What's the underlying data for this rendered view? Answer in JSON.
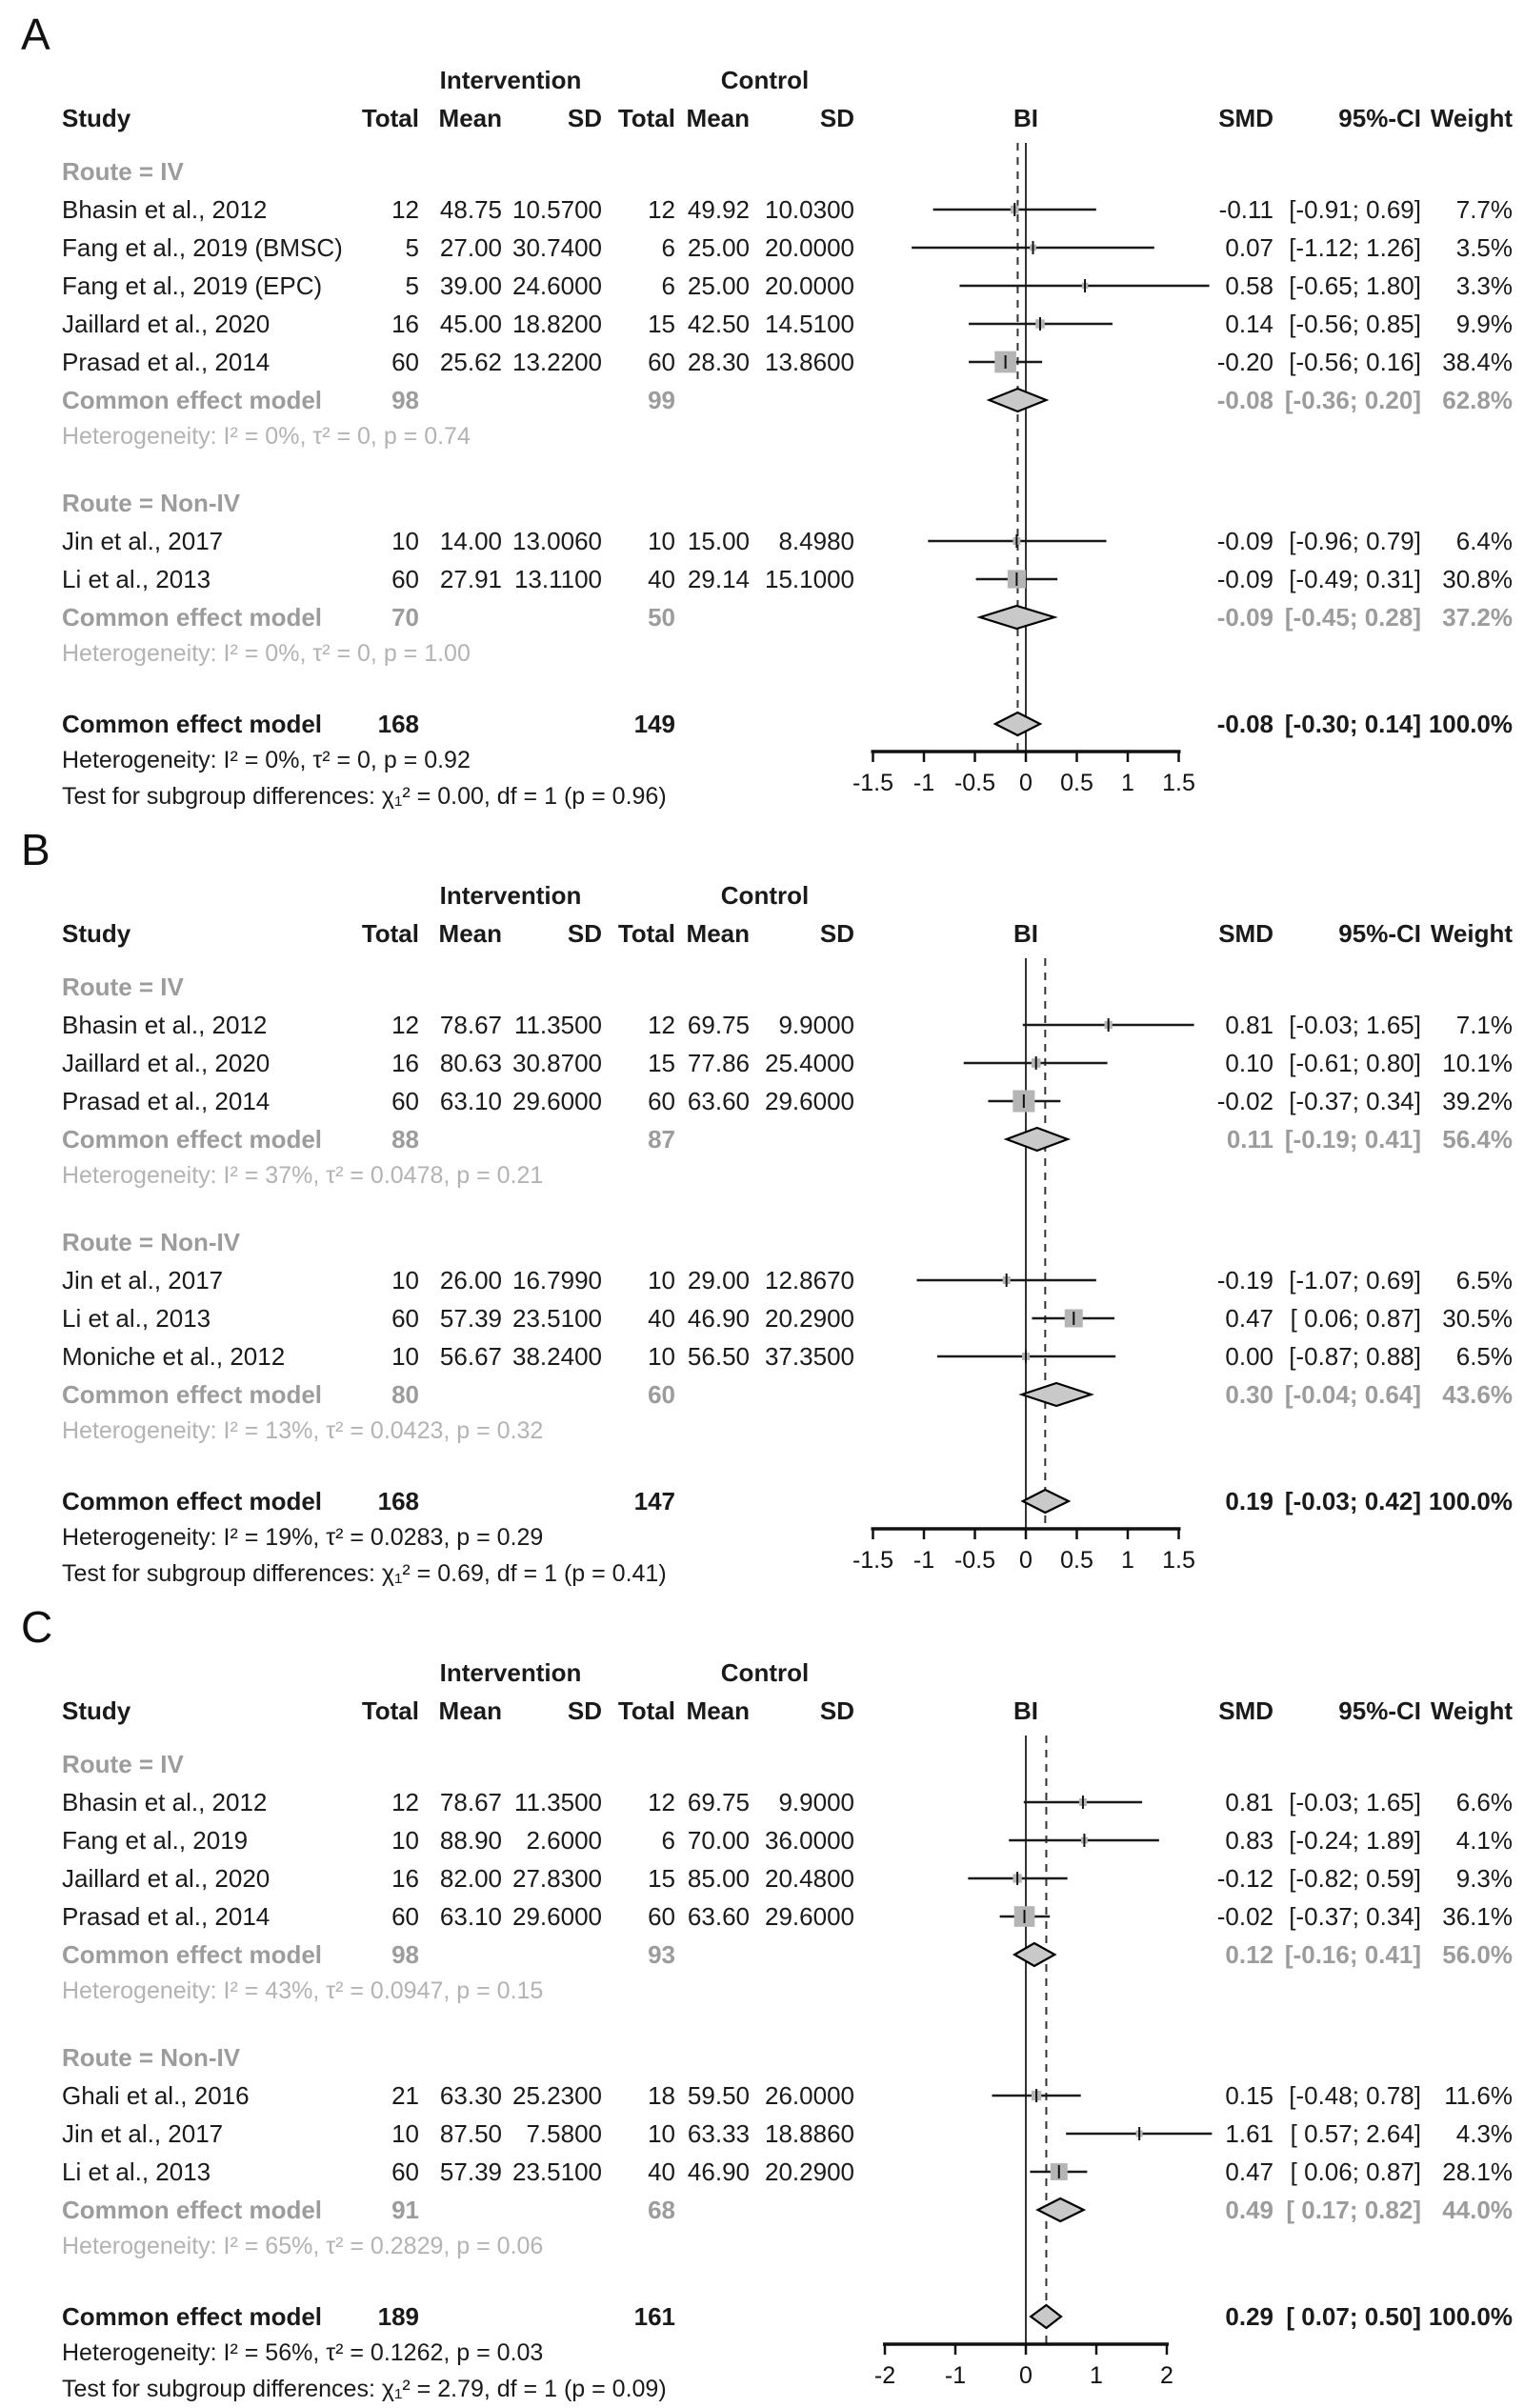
{
  "figure": {
    "outcome_measure": "BI",
    "effect_model_label": "Common effect model"
  },
  "chart_data": [
    {
      "type": "forest",
      "panel": "A",
      "columns": {
        "study": "Study",
        "group1": "Intervention",
        "group2": "Control",
        "total": "Total",
        "mean": "Mean",
        "sd": "SD",
        "outcome": "BI",
        "smd": "SMD",
        "ci": "95%-CI",
        "weight": "Weight"
      },
      "axis": {
        "ticks": [
          -1.5,
          -1,
          -0.5,
          0,
          0.5,
          1,
          1.5
        ],
        "tick_labels": [
          "-1.5",
          "-1",
          "-0.5",
          "0",
          "0.5",
          "1",
          "1.5"
        ]
      },
      "subgroups": [
        {
          "title": "Route = IV",
          "studies": [
            {
              "study": "Bhasin et al., 2012",
              "i_total": "12",
              "i_mean": "48.75",
              "i_sd": "10.5700",
              "c_total": "12",
              "c_mean": "49.92",
              "c_sd": "10.0300",
              "smd": -0.11,
              "lo": -0.91,
              "hi": 0.69,
              "smd_text": "-0.11",
              "ci_text": "[-0.91; 0.69]",
              "weight": 7.7,
              "weight_text": "7.7%"
            },
            {
              "study": "Fang et al., 2019 (BMSC)",
              "i_total": "5",
              "i_mean": "27.00",
              "i_sd": "30.7400",
              "c_total": "6",
              "c_mean": "25.00",
              "c_sd": "20.0000",
              "smd": 0.07,
              "lo": -1.12,
              "hi": 1.26,
              "smd_text": "0.07",
              "ci_text": "[-1.12; 1.26]",
              "weight": 3.5,
              "weight_text": "3.5%"
            },
            {
              "study": "Fang et al., 2019 (EPC)",
              "i_total": "5",
              "i_mean": "39.00",
              "i_sd": "24.6000",
              "c_total": "6",
              "c_mean": "25.00",
              "c_sd": "20.0000",
              "smd": 0.58,
              "lo": -0.65,
              "hi": 1.8,
              "smd_text": "0.58",
              "ci_text": "[-0.65; 1.80]",
              "weight": 3.3,
              "weight_text": "3.3%"
            },
            {
              "study": "Jaillard et al., 2020",
              "i_total": "16",
              "i_mean": "45.00",
              "i_sd": "18.8200",
              "c_total": "15",
              "c_mean": "42.50",
              "c_sd": "14.5100",
              "smd": 0.14,
              "lo": -0.56,
              "hi": 0.85,
              "smd_text": "0.14",
              "ci_text": "[-0.56; 0.85]",
              "weight": 9.9,
              "weight_text": "9.9%"
            },
            {
              "study": "Prasad et al., 2014",
              "i_total": "60",
              "i_mean": "25.62",
              "i_sd": "13.2200",
              "c_total": "60",
              "c_mean": "28.30",
              "c_sd": "13.8600",
              "smd": -0.2,
              "lo": -0.56,
              "hi": 0.16,
              "smd_text": "-0.20",
              "ci_text": "[-0.56; 0.16]",
              "weight": 38.4,
              "weight_text": "38.4%"
            }
          ],
          "pooled": {
            "label": "Common effect model",
            "i_total": "98",
            "c_total": "99",
            "smd": -0.08,
            "lo": -0.36,
            "hi": 0.2,
            "smd_text": "-0.08",
            "ci_text": "[-0.36; 0.20]",
            "weight_text": "62.8%"
          },
          "heterogeneity": "Heterogeneity: I² = 0%, τ² = 0, p = 0.74"
        },
        {
          "title": "Route = Non-IV",
          "studies": [
            {
              "study": "Jin et al., 2017",
              "i_total": "10",
              "i_mean": "14.00",
              "i_sd": "13.0060",
              "c_total": "10",
              "c_mean": "15.00",
              "c_sd": "8.4980",
              "smd": -0.09,
              "lo": -0.96,
              "hi": 0.79,
              "smd_text": "-0.09",
              "ci_text": "[-0.96; 0.79]",
              "weight": 6.4,
              "weight_text": "6.4%"
            },
            {
              "study": "Li et al., 2013",
              "i_total": "60",
              "i_mean": "27.91",
              "i_sd": "13.1100",
              "c_total": "40",
              "c_mean": "29.14",
              "c_sd": "15.1000",
              "smd": -0.09,
              "lo": -0.49,
              "hi": 0.31,
              "smd_text": "-0.09",
              "ci_text": "[-0.49; 0.31]",
              "weight": 30.8,
              "weight_text": "30.8%"
            }
          ],
          "pooled": {
            "label": "Common effect model",
            "i_total": "70",
            "c_total": "50",
            "smd": -0.09,
            "lo": -0.45,
            "hi": 0.28,
            "smd_text": "-0.09",
            "ci_text": "[-0.45; 0.28]",
            "weight_text": "37.2%"
          },
          "heterogeneity": "Heterogeneity: I² = 0%, τ² = 0, p = 1.00"
        }
      ],
      "overall": {
        "label": "Common effect model",
        "i_total": "168",
        "c_total": "149",
        "smd": -0.08,
        "lo": -0.3,
        "hi": 0.14,
        "smd_text": "-0.08",
        "ci_text": "[-0.30; 0.14]",
        "weight_text": "100.0%"
      },
      "heterogeneity": "Heterogeneity: I² = 0%, τ² = 0, p = 0.92",
      "subgroup_test": "Test for subgroup differences: χ₁² = 0.00, df = 1 (p = 0.96)"
    },
    {
      "type": "forest",
      "panel": "B",
      "columns": {
        "study": "Study",
        "group1": "Intervention",
        "group2": "Control",
        "total": "Total",
        "mean": "Mean",
        "sd": "SD",
        "outcome": "BI",
        "smd": "SMD",
        "ci": "95%-CI",
        "weight": "Weight"
      },
      "axis": {
        "ticks": [
          -1.5,
          -1,
          -0.5,
          0,
          0.5,
          1,
          1.5
        ],
        "tick_labels": [
          "-1.5",
          "-1",
          "-0.5",
          "0",
          "0.5",
          "1",
          "1.5"
        ]
      },
      "subgroups": [
        {
          "title": "Route = IV",
          "studies": [
            {
              "study": "Bhasin et al., 2012",
              "i_total": "12",
              "i_mean": "78.67",
              "i_sd": "11.3500",
              "c_total": "12",
              "c_mean": "69.75",
              "c_sd": "9.9000",
              "smd": 0.81,
              "lo": -0.03,
              "hi": 1.65,
              "smd_text": "0.81",
              "ci_text": "[-0.03; 1.65]",
              "weight": 7.1,
              "weight_text": "7.1%"
            },
            {
              "study": "Jaillard et al., 2020",
              "i_total": "16",
              "i_mean": "80.63",
              "i_sd": "30.8700",
              "c_total": "15",
              "c_mean": "77.86",
              "c_sd": "25.4000",
              "smd": 0.1,
              "lo": -0.61,
              "hi": 0.8,
              "smd_text": "0.10",
              "ci_text": "[-0.61; 0.80]",
              "weight": 10.1,
              "weight_text": "10.1%"
            },
            {
              "study": "Prasad et al., 2014",
              "i_total": "60",
              "i_mean": "63.10",
              "i_sd": "29.6000",
              "c_total": "60",
              "c_mean": "63.60",
              "c_sd": "29.6000",
              "smd": -0.02,
              "lo": -0.37,
              "hi": 0.34,
              "smd_text": "-0.02",
              "ci_text": "[-0.37; 0.34]",
              "weight": 39.2,
              "weight_text": "39.2%"
            }
          ],
          "pooled": {
            "label": "Common effect model",
            "i_total": "88",
            "c_total": "87",
            "smd": 0.11,
            "lo": -0.19,
            "hi": 0.41,
            "smd_text": "0.11",
            "ci_text": "[-0.19; 0.41]",
            "weight_text": "56.4%"
          },
          "heterogeneity": "Heterogeneity: I² = 37%, τ² = 0.0478, p = 0.21"
        },
        {
          "title": "Route = Non-IV",
          "studies": [
            {
              "study": "Jin et al., 2017",
              "i_total": "10",
              "i_mean": "26.00",
              "i_sd": "16.7990",
              "c_total": "10",
              "c_mean": "29.00",
              "c_sd": "12.8670",
              "smd": -0.19,
              "lo": -1.07,
              "hi": 0.69,
              "smd_text": "-0.19",
              "ci_text": "[-1.07; 0.69]",
              "weight": 6.5,
              "weight_text": "6.5%"
            },
            {
              "study": "Li et al., 2013",
              "i_total": "60",
              "i_mean": "57.39",
              "i_sd": "23.5100",
              "c_total": "40",
              "c_mean": "46.90",
              "c_sd": "20.2900",
              "smd": 0.47,
              "lo": 0.06,
              "hi": 0.87,
              "smd_text": "0.47",
              "ci_text": "[ 0.06; 0.87]",
              "weight": 30.5,
              "weight_text": "30.5%"
            },
            {
              "study": "Moniche et al., 2012",
              "i_total": "10",
              "i_mean": "56.67",
              "i_sd": "38.2400",
              "c_total": "10",
              "c_mean": "56.50",
              "c_sd": "37.3500",
              "smd": 0.0,
              "lo": -0.87,
              "hi": 0.88,
              "smd_text": "0.00",
              "ci_text": "[-0.87; 0.88]",
              "weight": 6.5,
              "weight_text": "6.5%"
            }
          ],
          "pooled": {
            "label": "Common effect model",
            "i_total": "80",
            "c_total": "60",
            "smd": 0.3,
            "lo": -0.04,
            "hi": 0.64,
            "smd_text": "0.30",
            "ci_text": "[-0.04; 0.64]",
            "weight_text": "43.6%"
          },
          "heterogeneity": "Heterogeneity: I² = 13%, τ² = 0.0423, p = 0.32"
        }
      ],
      "overall": {
        "label": "Common effect model",
        "i_total": "168",
        "c_total": "147",
        "smd": 0.19,
        "lo": -0.03,
        "hi": 0.42,
        "smd_text": "0.19",
        "ci_text": "[-0.03; 0.42]",
        "weight_text": "100.0%"
      },
      "heterogeneity": "Heterogeneity: I² = 19%, τ² = 0.0283, p = 0.29",
      "subgroup_test": "Test for subgroup differences: χ₁² = 0.69, df = 1 (p = 0.41)"
    },
    {
      "type": "forest",
      "panel": "C",
      "columns": {
        "study": "Study",
        "group1": "Intervention",
        "group2": "Control",
        "total": "Total",
        "mean": "Mean",
        "sd": "SD",
        "outcome": "BI",
        "smd": "SMD",
        "ci": "95%-CI",
        "weight": "Weight"
      },
      "axis": {
        "ticks": [
          -2,
          -1,
          0,
          1,
          2
        ],
        "tick_labels": [
          "-2",
          "-1",
          "0",
          "1",
          "2"
        ]
      },
      "subgroups": [
        {
          "title": "Route = IV",
          "studies": [
            {
              "study": "Bhasin et al., 2012",
              "i_total": "12",
              "i_mean": "78.67",
              "i_sd": "11.3500",
              "c_total": "12",
              "c_mean": "69.75",
              "c_sd": "9.9000",
              "smd": 0.81,
              "lo": -0.03,
              "hi": 1.65,
              "smd_text": "0.81",
              "ci_text": "[-0.03; 1.65]",
              "weight": 6.6,
              "weight_text": "6.6%"
            },
            {
              "study": "Fang et al., 2019",
              "i_total": "10",
              "i_mean": "88.90",
              "i_sd": "2.6000",
              "c_total": "6",
              "c_mean": "70.00",
              "c_sd": "36.0000",
              "smd": 0.83,
              "lo": -0.24,
              "hi": 1.89,
              "smd_text": "0.83",
              "ci_text": "[-0.24; 1.89]",
              "weight": 4.1,
              "weight_text": "4.1%"
            },
            {
              "study": "Jaillard et al., 2020",
              "i_total": "16",
              "i_mean": "82.00",
              "i_sd": "27.8300",
              "c_total": "15",
              "c_mean": "85.00",
              "c_sd": "20.4800",
              "smd": -0.12,
              "lo": -0.82,
              "hi": 0.59,
              "smd_text": "-0.12",
              "ci_text": "[-0.82; 0.59]",
              "weight": 9.3,
              "weight_text": "9.3%"
            },
            {
              "study": "Prasad et al., 2014",
              "i_total": "60",
              "i_mean": "63.10",
              "i_sd": "29.6000",
              "c_total": "60",
              "c_mean": "63.60",
              "c_sd": "29.6000",
              "smd": -0.02,
              "lo": -0.37,
              "hi": 0.34,
              "smd_text": "-0.02",
              "ci_text": "[-0.37; 0.34]",
              "weight": 36.1,
              "weight_text": "36.1%"
            }
          ],
          "pooled": {
            "label": "Common effect model",
            "i_total": "98",
            "c_total": "93",
            "smd": 0.12,
            "lo": -0.16,
            "hi": 0.41,
            "smd_text": "0.12",
            "ci_text": "[-0.16; 0.41]",
            "weight_text": "56.0%"
          },
          "heterogeneity": "Heterogeneity: I² = 43%, τ² = 0.0947, p = 0.15"
        },
        {
          "title": "Route = Non-IV",
          "studies": [
            {
              "study": "Ghali et al., 2016",
              "i_total": "21",
              "i_mean": "63.30",
              "i_sd": "25.2300",
              "c_total": "18",
              "c_mean": "59.50",
              "c_sd": "26.0000",
              "smd": 0.15,
              "lo": -0.48,
              "hi": 0.78,
              "smd_text": "0.15",
              "ci_text": "[-0.48; 0.78]",
              "weight": 11.6,
              "weight_text": "11.6%"
            },
            {
              "study": "Jin et al., 2017",
              "i_total": "10",
              "i_mean": "87.50",
              "i_sd": "7.5800",
              "c_total": "10",
              "c_mean": "63.33",
              "c_sd": "18.8860",
              "smd": 1.61,
              "lo": 0.57,
              "hi": 2.64,
              "smd_text": "1.61",
              "ci_text": "[ 0.57; 2.64]",
              "weight": 4.3,
              "weight_text": "4.3%"
            },
            {
              "study": "Li et al., 2013",
              "i_total": "60",
              "i_mean": "57.39",
              "i_sd": "23.5100",
              "c_total": "40",
              "c_mean": "46.90",
              "c_sd": "20.2900",
              "smd": 0.47,
              "lo": 0.06,
              "hi": 0.87,
              "smd_text": "0.47",
              "ci_text": "[ 0.06; 0.87]",
              "weight": 28.1,
              "weight_text": "28.1%"
            }
          ],
          "pooled": {
            "label": "Common effect model",
            "i_total": "91",
            "c_total": "68",
            "smd": 0.49,
            "lo": 0.17,
            "hi": 0.82,
            "smd_text": "0.49",
            "ci_text": "[ 0.17; 0.82]",
            "weight_text": "44.0%"
          },
          "heterogeneity": "Heterogeneity: I² = 65%, τ² = 0.2829, p = 0.06"
        }
      ],
      "overall": {
        "label": "Common effect model",
        "i_total": "189",
        "c_total": "161",
        "smd": 0.29,
        "lo": 0.07,
        "hi": 0.5,
        "smd_text": "0.29",
        "ci_text": "[ 0.07; 0.50]",
        "weight_text": "100.0%"
      },
      "heterogeneity": "Heterogeneity: I² = 56%, τ² = 0.1262, p = 0.03",
      "subgroup_test": "Test for subgroup differences: χ₁² = 2.79, df = 1 (p = 0.09)"
    }
  ]
}
